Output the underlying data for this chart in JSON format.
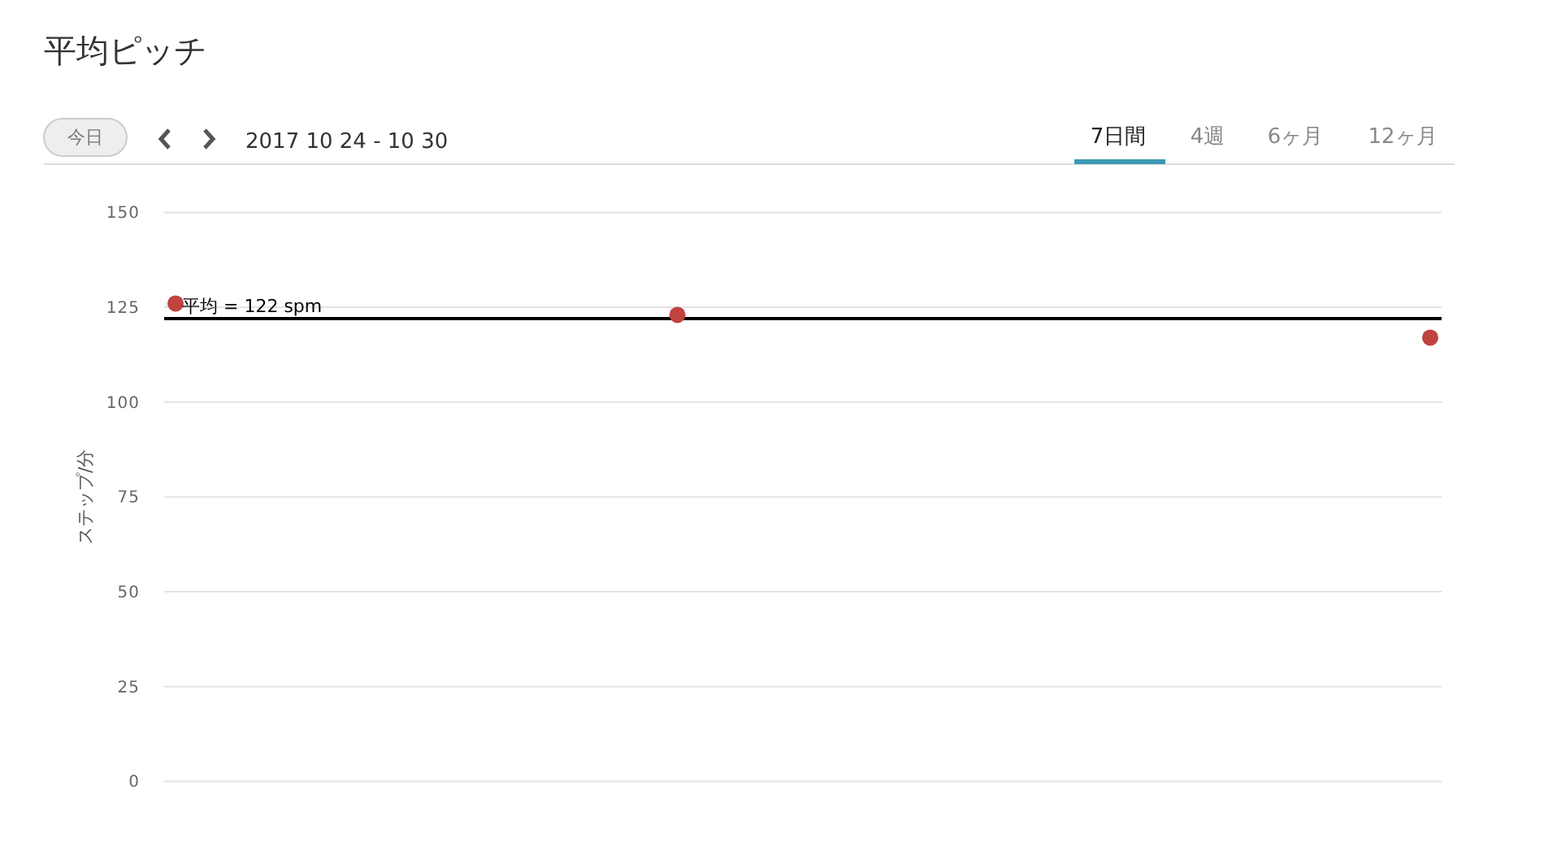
{
  "chart_data": {
    "type": "scatter",
    "title": "平均ピッチ",
    "subtitle": "2017 10 24 - 10 30",
    "ylabel": "ステップ/分",
    "annotations": [
      "今日",
      "7日間",
      "4週",
      "6ヶ月",
      "12ヶ月"
    ],
    "categories": [
      null,
      null,
      null,
      null,
      null,
      null,
      null,
      null,
      null,
      null,
      null,
      null,
      null,
      null,
      null,
      null,
      null,
      null,
      null,
      null,
      null,
      null,
      null,
      null,
      null,
      null,
      null,
      null,
      null,
      null,
      null,
      null,
      null,
      null,
      null,
      null,
      null,
      null,
      null,
      null,
      null,
      null,
      null,
      null,
      null,
      null,
      null,
      null,
      null,
      null,
      null,
      null,
      null,
      null,
      null,
      null
    ],
    "series": [
      {
        "color": "#c0433f",
        "values": [
          126,
          null,
          null,
          null,
          null,
          null,
          null,
          null,
          null,
          null,
          null,
          null,
          null,
          null,
          null,
          null,
          null,
          null,
          null,
          null,
          null,
          null,
          123,
          null,
          null,
          null,
          null,
          null,
          null,
          null,
          null,
          null,
          null,
          null,
          null,
          null,
          null,
          null,
          null,
          null,
          null,
          null,
          null,
          null,
          null,
          null,
          null,
          null,
          null,
          null,
          null,
          null,
          null,
          null,
          null,
          117
        ]
      }
    ],
    "ylim": [
      0,
      150
    ],
    "yticks": [
      0,
      25,
      50,
      75,
      100,
      125,
      150
    ],
    "grid": "y",
    "marker": "circle",
    "ref_lines": [
      {
        "axis": "y",
        "value": 122,
        "label": "平均 = 122 spm",
        "color": "#000000"
      }
    ]
  }
}
